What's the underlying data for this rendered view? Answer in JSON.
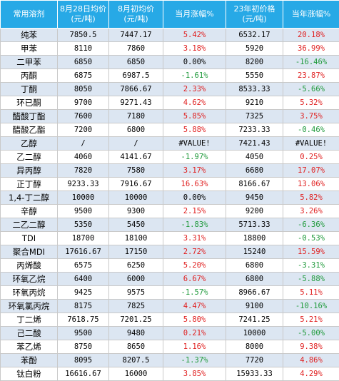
{
  "headers": [
    {
      "line1": "常用溶剂",
      "line2": ""
    },
    {
      "line1": "8月28日均价",
      "line2": "(元/吨)"
    },
    {
      "line1": "8月初均价",
      "line2": "(元/吨)"
    },
    {
      "line1": "当月涨幅%",
      "line2": ""
    },
    {
      "line1": "23年初价格",
      "line2": "(元/吨)"
    },
    {
      "line1": "当年涨幅%",
      "line2": ""
    }
  ],
  "rows": [
    {
      "name": "纯苯",
      "aug28": "7850.5",
      "aug1": "7447.17",
      "mchg": "5.42%",
      "mdir": "pos",
      "y23": "6532.17",
      "ychg": "20.18%",
      "ydir": "pos"
    },
    {
      "name": "甲苯",
      "aug28": "8110",
      "aug1": "7860",
      "mchg": "3.18%",
      "mdir": "pos",
      "y23": "5920",
      "ychg": "36.99%",
      "ydir": "pos"
    },
    {
      "name": "二甲苯",
      "aug28": "6850",
      "aug1": "6850",
      "mchg": "0.00%",
      "mdir": "neu",
      "y23": "8200",
      "ychg": "-16.46%",
      "ydir": "neg"
    },
    {
      "name": "丙酮",
      "aug28": "6875",
      "aug1": "6987.5",
      "mchg": "-1.61%",
      "mdir": "neg",
      "y23": "5550",
      "ychg": "23.87%",
      "ydir": "pos"
    },
    {
      "name": "丁酮",
      "aug28": "8050",
      "aug1": "7866.67",
      "mchg": "2.33%",
      "mdir": "pos",
      "y23": "8533.33",
      "ychg": "-5.66%",
      "ydir": "neg"
    },
    {
      "name": "环已酮",
      "aug28": "9700",
      "aug1": "9271.43",
      "mchg": "4.62%",
      "mdir": "pos",
      "y23": "9210",
      "ychg": "5.32%",
      "ydir": "pos"
    },
    {
      "name": "醋酸丁酯",
      "aug28": "7600",
      "aug1": "7180",
      "mchg": "5.85%",
      "mdir": "pos",
      "y23": "7325",
      "ychg": "3.75%",
      "ydir": "pos"
    },
    {
      "name": "醋酸乙酯",
      "aug28": "7200",
      "aug1": "6800",
      "mchg": "5.88%",
      "mdir": "pos",
      "y23": "7233.33",
      "ychg": "-0.46%",
      "ydir": "neg"
    },
    {
      "name": "乙醇",
      "aug28": "/",
      "aug1": "/",
      "mchg": "#VALUE!",
      "mdir": "neu",
      "y23": "7421.43",
      "ychg": "#VALUE!",
      "ydir": "neu"
    },
    {
      "name": "乙二醇",
      "aug28": "4060",
      "aug1": "4141.67",
      "mchg": "-1.97%",
      "mdir": "neg",
      "y23": "4050",
      "ychg": "0.25%",
      "ydir": "pos"
    },
    {
      "name": "异丙醇",
      "aug28": "7820",
      "aug1": "7580",
      "mchg": "3.17%",
      "mdir": "pos",
      "y23": "6680",
      "ychg": "17.07%",
      "ydir": "pos"
    },
    {
      "name": "正丁醇",
      "aug28": "9233.33",
      "aug1": "7916.67",
      "mchg": "16.63%",
      "mdir": "pos",
      "y23": "8166.67",
      "ychg": "13.06%",
      "ydir": "pos"
    },
    {
      "name": "1,4-丁二醇",
      "aug28": "10000",
      "aug1": "10000",
      "mchg": "0.00%",
      "mdir": "neu",
      "y23": "9450",
      "ychg": "5.82%",
      "ydir": "pos"
    },
    {
      "name": "辛醇",
      "aug28": "9500",
      "aug1": "9300",
      "mchg": "2.15%",
      "mdir": "pos",
      "y23": "9200",
      "ychg": "3.26%",
      "ydir": "pos"
    },
    {
      "name": "二乙二醇",
      "aug28": "5350",
      "aug1": "5450",
      "mchg": "-1.83%",
      "mdir": "neg",
      "y23": "5713.33",
      "ychg": "-6.36%",
      "ydir": "neg"
    },
    {
      "name": "TDI",
      "aug28": "18700",
      "aug1": "18100",
      "mchg": "3.31%",
      "mdir": "pos",
      "y23": "18800",
      "ychg": "-0.53%",
      "ydir": "neg"
    },
    {
      "name": "聚合MDI",
      "aug28": "17616.67",
      "aug1": "17150",
      "mchg": "2.72%",
      "mdir": "pos",
      "y23": "15240",
      "ychg": "15.59%",
      "ydir": "pos"
    },
    {
      "name": "丙烯酸",
      "aug28": "6575",
      "aug1": "6250",
      "mchg": "5.20%",
      "mdir": "pos",
      "y23": "6800",
      "ychg": "-3.31%",
      "ydir": "neg"
    },
    {
      "name": "环氧乙烷",
      "aug28": "6400",
      "aug1": "6000",
      "mchg": "6.67%",
      "mdir": "pos",
      "y23": "6800",
      "ychg": "-5.88%",
      "ydir": "neg"
    },
    {
      "name": "环氧丙烷",
      "aug28": "9425",
      "aug1": "9575",
      "mchg": "-1.57%",
      "mdir": "neg",
      "y23": "8966.67",
      "ychg": "5.11%",
      "ydir": "pos"
    },
    {
      "name": "环氧氯丙烷",
      "aug28": "8175",
      "aug1": "7825",
      "mchg": "4.47%",
      "mdir": "pos",
      "y23": "9100",
      "ychg": "-10.16%",
      "ydir": "neg"
    },
    {
      "name": "丁二烯",
      "aug28": "7618.75",
      "aug1": "7201.25",
      "mchg": "5.80%",
      "mdir": "pos",
      "y23": "7241.25",
      "ychg": "5.21%",
      "ydir": "pos"
    },
    {
      "name": "己二酸",
      "aug28": "9500",
      "aug1": "9480",
      "mchg": "0.21%",
      "mdir": "pos",
      "y23": "10000",
      "ychg": "-5.00%",
      "ydir": "neg"
    },
    {
      "name": "苯乙烯",
      "aug28": "8750",
      "aug1": "8650",
      "mchg": "1.16%",
      "mdir": "pos",
      "y23": "8000",
      "ychg": "9.38%",
      "ydir": "pos"
    },
    {
      "name": "苯酚",
      "aug28": "8095",
      "aug1": "8207.5",
      "mchg": "-1.37%",
      "mdir": "neg",
      "y23": "7720",
      "ychg": "4.86%",
      "ydir": "pos"
    },
    {
      "name": "钛白粉",
      "aug28": "16616.67",
      "aug1": "16000",
      "mchg": "3.85%",
      "mdir": "pos",
      "y23": "15933.33",
      "ychg": "4.29%",
      "ydir": "pos"
    }
  ],
  "colors": {
    "header_bg": "#27A9E6",
    "stripe_bg": "#DCE6F2",
    "positive": "#E02020",
    "negative": "#1F9A3B"
  }
}
